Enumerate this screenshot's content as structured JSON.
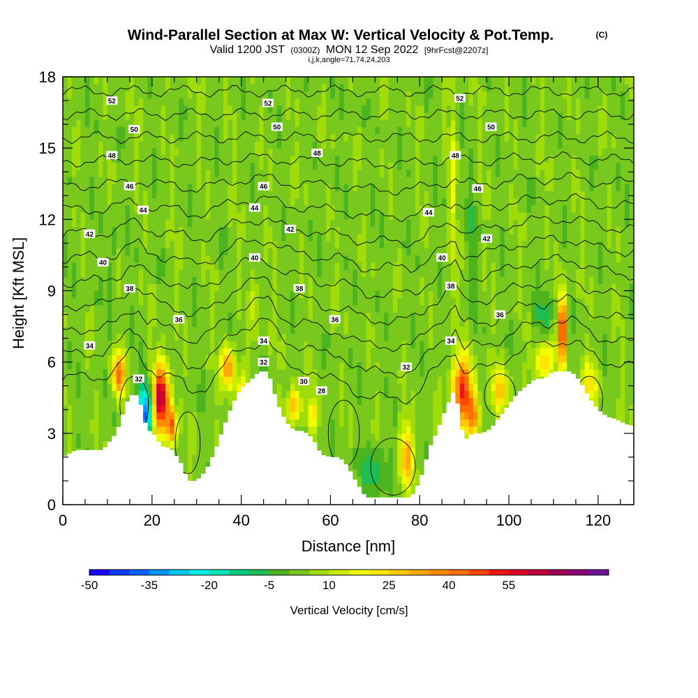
{
  "chart_data": {
    "type": "heatmap",
    "title_main": "Wind-Parallel Section at Max W: Vertical Velocity & Pot.Temp.",
    "title_mark": "(C)",
    "subtitle_a": "Valid 1200 JST",
    "subtitle_b": "(0300Z)",
    "subtitle_c": "MON 12 Sep 2022",
    "subtitle_d": "[9hrFcst@2207z]",
    "subtitle2": "i,j,k,angle=71,74,24,203",
    "xlabel": "Distance [nm]",
    "ylabel": "Height [Kft MSL]",
    "xlim": [
      0,
      128
    ],
    "ylim": [
      0,
      18
    ],
    "x_ticks": [
      0,
      20,
      40,
      60,
      80,
      100,
      120
    ],
    "y_ticks": [
      0,
      3,
      6,
      9,
      12,
      15,
      18
    ],
    "x_tick_labels": [
      "0",
      "20",
      "40",
      "60",
      "80",
      "100",
      "120"
    ],
    "y_tick_labels": [
      "0",
      "3",
      "6",
      "9",
      "12",
      "15",
      "18"
    ],
    "terrain": {
      "x": [
        0,
        3,
        6,
        9,
        12,
        15,
        17,
        18,
        19,
        20,
        21,
        22,
        23,
        24,
        25,
        26,
        27,
        28,
        30,
        32,
        34,
        36,
        38,
        40,
        42,
        44,
        46,
        47,
        48,
        50,
        52,
        54,
        56,
        58,
        60,
        62,
        64,
        65,
        66,
        67,
        68,
        70,
        72,
        74,
        76,
        78,
        79,
        80,
        81,
        82,
        84,
        86,
        88,
        89,
        90,
        92,
        94,
        96,
        98,
        100,
        102,
        104,
        106,
        108,
        110,
        112,
        114,
        116,
        118,
        120,
        122,
        124,
        126,
        128
      ],
      "y": [
        2.0,
        2.3,
        2.3,
        2.3,
        3.0,
        4.6,
        4.6,
        3.8,
        3.1,
        3.1,
        2.8,
        2.5,
        2.4,
        2.4,
        2.2,
        1.9,
        1.6,
        1.0,
        1.0,
        1.4,
        2.2,
        3.2,
        4.2,
        4.9,
        5.2,
        5.6,
        5.6,
        5.0,
        4.3,
        3.5,
        3.1,
        3.1,
        2.8,
        2.1,
        2.0,
        2.0,
        1.6,
        1.2,
        0.9,
        0.6,
        0.3,
        0.3,
        0.3,
        0.3,
        0.3,
        0.3,
        0.6,
        1.0,
        1.5,
        2.3,
        3.1,
        4.1,
        4.9,
        3.6,
        2.7,
        3.0,
        3.0,
        3.2,
        3.7,
        4.2,
        4.7,
        5.0,
        5.3,
        5.3,
        5.6,
        5.6,
        5.6,
        5.2,
        4.5,
        4.0,
        3.7,
        3.6,
        3.4,
        3.3
      ]
    },
    "w_features": [
      {
        "x": 12.5,
        "y": 5.5,
        "sx": 1.4,
        "sy": 0.9,
        "w": 40
      },
      {
        "x": 22,
        "y": 4.5,
        "sx": 1.8,
        "sy": 1.4,
        "w": 60
      },
      {
        "x": 24.5,
        "y": 3.3,
        "sx": 1.0,
        "sy": 0.8,
        "w": 42
      },
      {
        "x": 18.5,
        "y": 4.0,
        "sx": 1.6,
        "sy": 1.2,
        "w": -38
      },
      {
        "x": 17.5,
        "y": 3.5,
        "sx": 0.8,
        "sy": 0.5,
        "w": -20
      },
      {
        "x": 37,
        "y": 5.8,
        "sx": 1.4,
        "sy": 0.9,
        "w": 35
      },
      {
        "x": 40,
        "y": 4.5,
        "sx": 1.3,
        "sy": 1.0,
        "w": 22
      },
      {
        "x": 52,
        "y": 4.2,
        "sx": 1.5,
        "sy": 0.8,
        "w": 28
      },
      {
        "x": 56,
        "y": 3.8,
        "sx": 1.2,
        "sy": 0.7,
        "w": 20
      },
      {
        "x": 77,
        "y": 2.0,
        "sx": 1.5,
        "sy": 1.3,
        "w": 28
      },
      {
        "x": 70,
        "y": 1.5,
        "sx": 3.0,
        "sy": 1.0,
        "w": -12
      },
      {
        "x": 89.5,
        "y": 4.8,
        "sx": 2.2,
        "sy": 1.4,
        "w": 48
      },
      {
        "x": 92,
        "y": 3.8,
        "sx": 1.5,
        "sy": 0.9,
        "w": 30
      },
      {
        "x": 98,
        "y": 4.8,
        "sx": 2.0,
        "sy": 0.9,
        "w": 22
      },
      {
        "x": 112,
        "y": 7.4,
        "sx": 0.9,
        "sy": 1.5,
        "w": 55
      },
      {
        "x": 108,
        "y": 6.0,
        "sx": 2.0,
        "sy": 0.8,
        "w": 26
      },
      {
        "x": 118,
        "y": 5.0,
        "sx": 1.8,
        "sy": 1.0,
        "w": 18
      },
      {
        "x": 87.5,
        "y": 13.5,
        "sx": 0.8,
        "sy": 4.5,
        "w": 11
      },
      {
        "x": 11,
        "y": 9.5,
        "sx": 0.8,
        "sy": 2.5,
        "w": -8
      },
      {
        "x": 43,
        "y": 8.5,
        "sx": 0.9,
        "sy": 1.5,
        "w": 12
      },
      {
        "x": 108,
        "y": 8.0,
        "sx": 2.5,
        "sy": 0.8,
        "w": -10
      },
      {
        "x": 92,
        "y": 11.0,
        "sx": 1.0,
        "sy": 3.0,
        "w": -7
      }
    ],
    "theta_levels": [
      28,
      30,
      32,
      34,
      36,
      38,
      40,
      42,
      44,
      46,
      48,
      50,
      52
    ],
    "theta_labels": [
      {
        "text": "52",
        "x": 11,
        "y": 17.0
      },
      {
        "text": "52",
        "x": 46,
        "y": 16.9
      },
      {
        "text": "52",
        "x": 89,
        "y": 17.1
      },
      {
        "text": "50",
        "x": 16,
        "y": 15.8
      },
      {
        "text": "50",
        "x": 48,
        "y": 15.9
      },
      {
        "text": "50",
        "x": 96,
        "y": 15.9
      },
      {
        "text": "48",
        "x": 11,
        "y": 14.7
      },
      {
        "text": "48",
        "x": 57,
        "y": 14.8
      },
      {
        "text": "48",
        "x": 88,
        "y": 14.7
      },
      {
        "text": "46",
        "x": 15,
        "y": 13.4
      },
      {
        "text": "46",
        "x": 45,
        "y": 13.4
      },
      {
        "text": "46",
        "x": 93,
        "y": 13.3
      },
      {
        "text": "44",
        "x": 18,
        "y": 12.4
      },
      {
        "text": "44",
        "x": 43,
        "y": 12.5
      },
      {
        "text": "44",
        "x": 82,
        "y": 12.3
      },
      {
        "text": "42",
        "x": 6,
        "y": 11.4
      },
      {
        "text": "42",
        "x": 51,
        "y": 11.6
      },
      {
        "text": "42",
        "x": 95,
        "y": 11.2
      },
      {
        "text": "40",
        "x": 9,
        "y": 10.2
      },
      {
        "text": "40",
        "x": 43,
        "y": 10.4
      },
      {
        "text": "40",
        "x": 85,
        "y": 10.4
      },
      {
        "text": "38",
        "x": 15,
        "y": 9.1
      },
      {
        "text": "38",
        "x": 53,
        "y": 9.1
      },
      {
        "text": "38",
        "x": 87,
        "y": 9.2
      },
      {
        "text": "36",
        "x": 26,
        "y": 7.8
      },
      {
        "text": "36",
        "x": 61,
        "y": 7.8
      },
      {
        "text": "36",
        "x": 98,
        "y": 8.0
      },
      {
        "text": "34",
        "x": 6,
        "y": 6.7
      },
      {
        "text": "34",
        "x": 45,
        "y": 6.9
      },
      {
        "text": "34",
        "x": 87,
        "y": 6.9
      },
      {
        "text": "32",
        "x": 17,
        "y": 5.3
      },
      {
        "text": "32",
        "x": 45,
        "y": 6.0
      },
      {
        "text": "32",
        "x": 77,
        "y": 5.8
      },
      {
        "text": "30",
        "x": 54,
        "y": 5.2
      },
      {
        "text": "28",
        "x": 58,
        "y": 4.8
      }
    ],
    "colorbar": {
      "label": "Vertical Velocity [cm/s]",
      "min": -50,
      "step": 5,
      "tick_values": [
        -50,
        -35,
        -20,
        -5,
        10,
        25,
        40,
        55
      ],
      "tick_labels": [
        "-50",
        "-35",
        "-20",
        "-5",
        "10",
        "25",
        "40",
        "55"
      ],
      "colors": [
        "#1a00ff",
        "#0a3cff",
        "#0064ff",
        "#0096ff",
        "#00c8f0",
        "#00f0e6",
        "#00e6b4",
        "#00cd82",
        "#1ebe55",
        "#4bb41e",
        "#78c81e",
        "#a0dc0a",
        "#c8eb00",
        "#f0ff00",
        "#ffe600",
        "#ffc800",
        "#ffaa00",
        "#ff8c00",
        "#ff6e00",
        "#ff4600",
        "#f01414",
        "#dc0028",
        "#be003c",
        "#a00055",
        "#8c0078",
        "#6e1496"
      ]
    }
  }
}
